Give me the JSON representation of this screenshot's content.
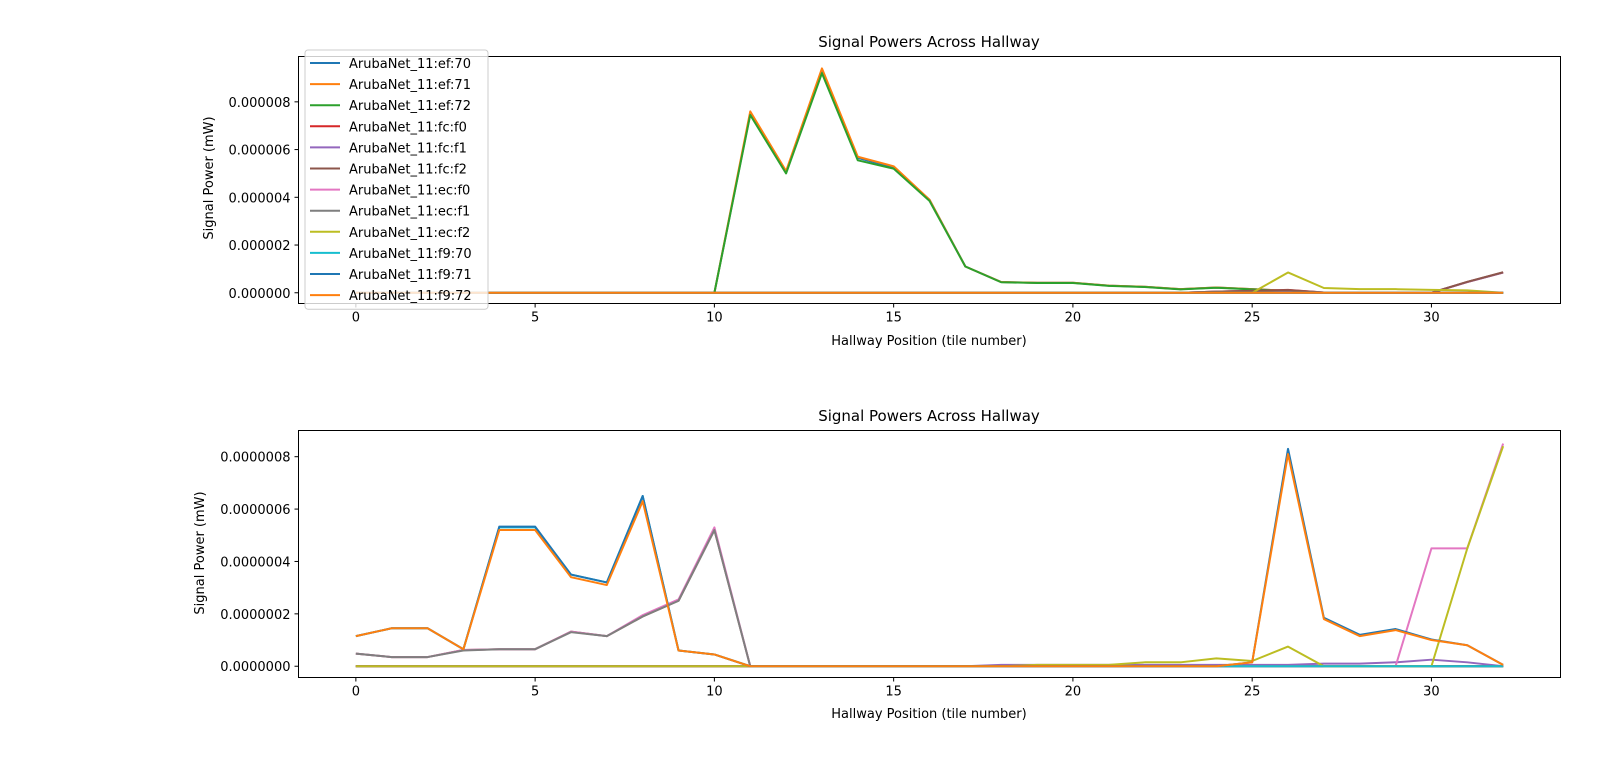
{
  "chart_data": [
    {
      "type": "line",
      "title": "Signal Powers Across Hallway",
      "xlabel": "Hallway Position (tile number)",
      "ylabel": "Signal Power (mW)",
      "xlim": [
        -1.6,
        33.6
      ],
      "ylim": [
        -4.5e-07,
        9.9e-06
      ],
      "xticks": [
        0,
        5,
        10,
        15,
        20,
        25,
        30
      ],
      "xtick_labels": [
        "0",
        "5",
        "10",
        "15",
        "20",
        "25",
        "30"
      ],
      "yticks": [
        0,
        2e-06,
        4e-06,
        6e-06,
        8e-06
      ],
      "ytick_labels": [
        "0.000000",
        "0.000002",
        "0.000004",
        "0.000006",
        "0.000008"
      ],
      "grid": false,
      "legend": "upper-left",
      "x": [
        0,
        1,
        2,
        3,
        4,
        5,
        6,
        7,
        8,
        9,
        10,
        11,
        12,
        13,
        14,
        15,
        16,
        17,
        18,
        19,
        20,
        21,
        22,
        23,
        24,
        25,
        26,
        27,
        28,
        29,
        30,
        31,
        32
      ],
      "series": [
        {
          "name": "ArubaNet_11:ef:70",
          "color": "#1f77b4",
          "values": [
            0,
            0,
            0,
            0,
            0,
            0,
            0,
            0,
            0,
            0,
            0,
            7.5e-06,
            5.05e-06,
            9.35e-06,
            5.65e-06,
            5.25e-06,
            3.9e-06,
            1.1e-06,
            4.5e-07,
            4.2e-07,
            4.2e-07,
            3e-07,
            2.5e-07,
            1.5e-07,
            2.2e-07,
            1.5e-07,
            8e-08,
            0,
            0,
            0,
            0,
            0,
            0
          ]
        },
        {
          "name": "ArubaNet_11:ef:71",
          "color": "#ff7f0e",
          "values": [
            0,
            0,
            0,
            0,
            0,
            0,
            0,
            0,
            0,
            0,
            0,
            7.6e-06,
            5.1e-06,
            9.4e-06,
            5.7e-06,
            5.3e-06,
            3.9e-06,
            1.1e-06,
            4.5e-07,
            4.2e-07,
            4.2e-07,
            3e-07,
            2.5e-07,
            1.5e-07,
            2.2e-07,
            1.5e-07,
            8e-08,
            0,
            0,
            0,
            0,
            0,
            0
          ]
        },
        {
          "name": "ArubaNet_11:ef:72",
          "color": "#2ca02c",
          "values": [
            0,
            0,
            0,
            0,
            0,
            0,
            0,
            0,
            0,
            0,
            0,
            7.45e-06,
            5e-06,
            9.2e-06,
            5.55e-06,
            5.2e-06,
            3.85e-06,
            1.1e-06,
            4.4e-07,
            4.1e-07,
            4.1e-07,
            2.9e-07,
            2.4e-07,
            1.4e-07,
            2.1e-07,
            1.4e-07,
            7e-08,
            0,
            0,
            0,
            0,
            0,
            0
          ]
        },
        {
          "name": "ArubaNet_11:fc:f0",
          "color": "#d62728",
          "values": [
            0,
            0,
            0,
            0,
            0,
            0,
            0,
            0,
            0,
            0,
            0,
            0,
            0,
            0,
            0,
            0,
            0,
            0,
            0,
            0,
            0,
            0,
            0,
            0,
            5e-08,
            8e-08,
            1.2e-07,
            1e-08,
            0,
            0,
            0,
            4.5e-07,
            8.5e-07
          ]
        },
        {
          "name": "ArubaNet_11:fc:f1",
          "color": "#9467bd",
          "values": [
            0,
            0,
            0,
            0,
            0,
            0,
            0,
            0,
            0,
            0,
            0,
            0,
            0,
            0,
            0,
            0,
            0,
            0,
            0,
            0,
            0,
            0,
            0,
            0,
            5e-08,
            8e-08,
            1e-07,
            1e-08,
            0,
            0,
            0,
            4.5e-07,
            8.5e-07
          ]
        },
        {
          "name": "ArubaNet_11:fc:f2",
          "color": "#8c564b",
          "values": [
            0,
            0,
            0,
            0,
            0,
            0,
            0,
            0,
            0,
            0,
            0,
            0,
            0,
            0,
            0,
            0,
            0,
            0,
            0,
            0,
            0,
            0,
            0,
            0,
            5e-08,
            8e-08,
            1.1e-07,
            1e-08,
            0,
            0,
            0,
            4.6e-07,
            8.6e-07
          ]
        },
        {
          "name": "ArubaNet_11:ec:f0",
          "color": "#e377c2",
          "values": [
            0,
            0,
            0,
            0,
            0,
            0,
            0,
            0,
            0,
            0,
            0,
            0,
            0,
            0,
            0,
            0,
            0,
            0,
            0,
            0,
            0,
            0,
            0,
            0,
            0,
            0,
            0,
            0,
            0,
            0,
            0,
            0,
            0
          ]
        },
        {
          "name": "ArubaNet_11:ec:f1",
          "color": "#7f7f7f",
          "values": [
            0,
            0,
            0,
            0,
            0,
            0,
            0,
            0,
            0,
            0,
            0,
            0,
            0,
            0,
            0,
            0,
            0,
            0,
            0,
            0,
            0,
            0,
            0,
            0,
            0,
            0,
            0,
            0,
            0,
            0,
            0,
            0,
            0
          ]
        },
        {
          "name": "ArubaNet_11:ec:f2",
          "color": "#bcbd22",
          "values": [
            0,
            0,
            0,
            0,
            0,
            0,
            0,
            0,
            0,
            0,
            0,
            0,
            0,
            0,
            0,
            0,
            0,
            0,
            0,
            0,
            0,
            0,
            0,
            0,
            0,
            0,
            8.5e-07,
            2e-07,
            1.5e-07,
            1.5e-07,
            1.2e-07,
            1e-07,
            0
          ]
        },
        {
          "name": "ArubaNet_11:f9:70",
          "color": "#17becf",
          "values": [
            0,
            0,
            0,
            0,
            0,
            0,
            0,
            0,
            0,
            0,
            0,
            0,
            0,
            0,
            0,
            0,
            0,
            0,
            0,
            0,
            0,
            0,
            0,
            0,
            0,
            0,
            0,
            0,
            0,
            0,
            0,
            0,
            0
          ]
        },
        {
          "name": "ArubaNet_11:f9:71",
          "color": "#1f77b4",
          "values": [
            0,
            0,
            0,
            0,
            0,
            0,
            0,
            0,
            0,
            0,
            0,
            0,
            0,
            0,
            0,
            0,
            0,
            0,
            0,
            0,
            0,
            0,
            0,
            0,
            0,
            0,
            0,
            0,
            0,
            0,
            0,
            0,
            0
          ]
        },
        {
          "name": "ArubaNet_11:f9:72",
          "color": "#ff7f0e",
          "values": [
            0,
            0,
            0,
            0,
            0,
            0,
            0,
            0,
            0,
            0,
            0,
            0,
            0,
            0,
            0,
            0,
            0,
            0,
            0,
            0,
            0,
            0,
            0,
            0,
            0,
            0,
            0,
            0,
            0,
            0,
            0,
            0,
            0
          ]
        }
      ]
    },
    {
      "type": "line",
      "title": "Signal Powers Across Hallway",
      "xlabel": "Hallway Position (tile number)",
      "ylabel": "Signal Power (mW)",
      "xlim": [
        -1.6,
        33.6
      ],
      "ylim": [
        -4.3e-08,
        9e-07
      ],
      "xticks": [
        0,
        5,
        10,
        15,
        20,
        25,
        30
      ],
      "xtick_labels": [
        "0",
        "5",
        "10",
        "15",
        "20",
        "25",
        "30"
      ],
      "yticks": [
        0,
        2e-07,
        4e-07,
        6e-07,
        8e-07
      ],
      "ytick_labels": [
        "0.0000000",
        "0.0000002",
        "0.0000004",
        "0.0000006",
        "0.0000008"
      ],
      "grid": false,
      "legend": "",
      "x": [
        0,
        1,
        2,
        3,
        4,
        5,
        6,
        7,
        8,
        9,
        10,
        11,
        12,
        13,
        14,
        15,
        16,
        17,
        18,
        19,
        20,
        21,
        22,
        23,
        24,
        25,
        26,
        27,
        28,
        29,
        30,
        31,
        32
      ],
      "series": [
        {
          "name": "ArubaNet_11:ef:70",
          "color": "#1f77b4",
          "values": [
            0,
            0,
            0,
            0,
            0,
            0,
            0,
            0,
            0,
            0,
            0,
            0,
            0,
            0,
            0,
            0,
            0,
            0,
            0,
            0,
            0,
            0,
            0,
            0,
            0,
            0,
            0,
            0,
            0,
            0,
            0,
            0,
            0
          ]
        },
        {
          "name": "ArubaNet_11:ef:71",
          "color": "#ff7f0e",
          "values": [
            0,
            0,
            0,
            0,
            0,
            0,
            0,
            0,
            0,
            0,
            0,
            0,
            0,
            0,
            0,
            0,
            0,
            0,
            0,
            0,
            0,
            0,
            0,
            0,
            0,
            0,
            0,
            0,
            0,
            0,
            0,
            0,
            0
          ]
        },
        {
          "name": "ArubaNet_11:ef:72",
          "color": "#2ca02c",
          "values": [
            0,
            0,
            0,
            0,
            0,
            0,
            0,
            0,
            0,
            0,
            0,
            0,
            0,
            0,
            0,
            0,
            0,
            0,
            0,
            0,
            0,
            0,
            0,
            0,
            0,
            0,
            0,
            0,
            0,
            0,
            0,
            0,
            0
          ]
        },
        {
          "name": "ArubaNet_11:fc:f0",
          "color": "#d62728",
          "values": [
            0,
            0,
            0,
            0,
            0,
            0,
            0,
            0,
            0,
            0,
            0,
            0,
            0,
            0,
            0,
            0,
            0,
            0,
            0,
            0,
            0,
            0,
            0,
            0,
            0,
            0,
            0,
            0,
            0,
            0,
            0,
            0,
            0
          ]
        },
        {
          "name": "ArubaNet_11:fc:f1",
          "color": "#9467bd",
          "values": [
            0,
            0,
            0,
            0,
            0,
            0,
            0,
            0,
            0,
            0,
            0,
            0,
            0,
            0,
            0,
            0,
            0,
            0,
            5e-09,
            5e-09,
            5e-09,
            5e-09,
            5e-09,
            5e-09,
            5e-09,
            5e-09,
            5e-09,
            1e-08,
            1e-08,
            1.5e-08,
            2.5e-08,
            1.5e-08,
            0
          ]
        },
        {
          "name": "ArubaNet_11:fc:f2",
          "color": "#8c564b",
          "values": [
            4.8e-08,
            3.5e-08,
            3.5e-08,
            6.2e-08,
            6.5e-08,
            6.5e-08,
            1.32e-07,
            1.15e-07,
            1.9e-07,
            2.5e-07,
            5.2e-07,
            0,
            0,
            0,
            0,
            0,
            0,
            0,
            0,
            0,
            0,
            0,
            0,
            0,
            0,
            0,
            0,
            0,
            0,
            0,
            0,
            0,
            0
          ]
        },
        {
          "name": "ArubaNet_11:ec:f0",
          "color": "#e377c2",
          "values": [
            4.8e-08,
            3.5e-08,
            3.5e-08,
            6.2e-08,
            6.5e-08,
            6.5e-08,
            1.32e-07,
            1.15e-07,
            1.95e-07,
            2.55e-07,
            5.3e-07,
            0,
            0,
            0,
            0,
            0,
            0,
            0,
            0,
            0,
            0,
            0,
            0,
            0,
            0,
            0,
            0,
            0,
            0,
            0,
            4.5e-07,
            4.5e-07,
            8.5e-07
          ]
        },
        {
          "name": "ArubaNet_11:ec:f1",
          "color": "#7f7f7f",
          "values": [
            4.8e-08,
            3.5e-08,
            3.5e-08,
            6e-08,
            6.5e-08,
            6.5e-08,
            1.3e-07,
            1.15e-07,
            1.9e-07,
            2.5e-07,
            5.2e-07,
            0,
            0,
            0,
            0,
            0,
            0,
            0,
            0,
            0,
            0,
            0,
            0,
            0,
            0,
            0,
            0,
            0,
            0,
            0,
            0,
            0,
            0
          ]
        },
        {
          "name": "ArubaNet_11:ec:f2",
          "color": "#bcbd22",
          "values": [
            0,
            0,
            0,
            0,
            0,
            0,
            0,
            0,
            0,
            0,
            0,
            0,
            0,
            0,
            0,
            0,
            0,
            0,
            0,
            5e-09,
            5e-09,
            5e-09,
            1.5e-08,
            1.5e-08,
            3e-08,
            2e-08,
            7.5e-08,
            0,
            0,
            0,
            0,
            4.5e-07,
            8.4e-07
          ]
        },
        {
          "name": "ArubaNet_11:f9:70",
          "color": "#17becf",
          "values": [
            1.15e-07,
            1.45e-07,
            1.45e-07,
            6.5e-08,
            5.3e-07,
            5.3e-07,
            3.5e-07,
            3.2e-07,
            6.5e-07,
            6e-08,
            4.5e-08,
            0,
            0,
            0,
            0,
            0,
            0,
            0,
            0,
            0,
            0,
            0,
            0,
            0,
            0,
            0,
            0,
            0,
            0,
            0,
            0,
            0,
            0
          ]
        },
        {
          "name": "ArubaNet_11:f9:71",
          "color": "#1f77b4",
          "values": [
            1.15e-07,
            1.45e-07,
            1.45e-07,
            6.5e-08,
            5.33e-07,
            5.33e-07,
            3.5e-07,
            3.2e-07,
            6.5e-07,
            6e-08,
            4.5e-08,
            0,
            0,
            0,
            0,
            0,
            0,
            0,
            0,
            0,
            0,
            0,
            0,
            0,
            0,
            1.5e-08,
            8.3e-07,
            1.85e-07,
            1.2e-07,
            1.42e-07,
            1.02e-07,
            8e-08,
            5e-09
          ]
        },
        {
          "name": "ArubaNet_11:f9:72",
          "color": "#ff7f0e",
          "values": [
            1.15e-07,
            1.45e-07,
            1.45e-07,
            6.5e-08,
            5.2e-07,
            5.2e-07,
            3.4e-07,
            3.1e-07,
            6.3e-07,
            6e-08,
            4.5e-08,
            0,
            0,
            0,
            0,
            0,
            0,
            0,
            0,
            0,
            0,
            0,
            0,
            0,
            0,
            1.5e-08,
            8.1e-07,
            1.8e-07,
            1.15e-07,
            1.38e-07,
            1e-07,
            8e-08,
            5e-09
          ]
        }
      ]
    }
  ]
}
